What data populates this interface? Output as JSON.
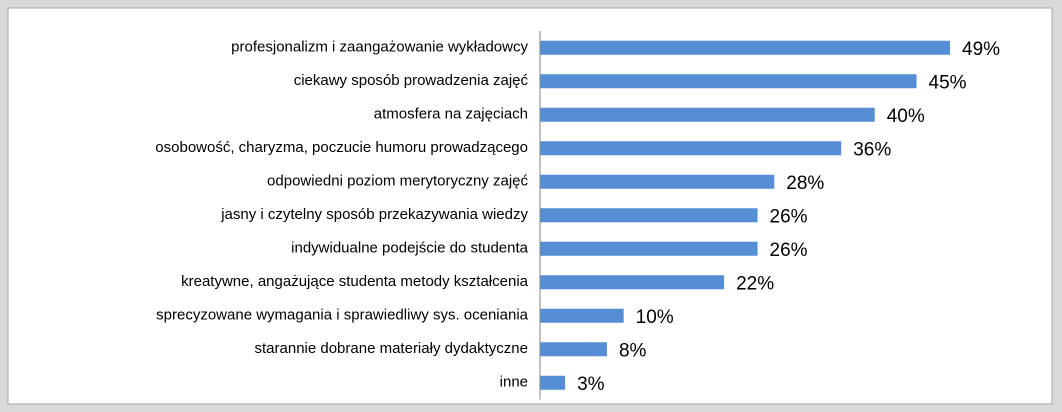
{
  "chart_data": {
    "type": "bar",
    "orientation": "horizontal",
    "categories": [
      "profesjonalizm i zaangażowanie wykładowcy",
      "ciekawy sposób prowadzenia zajęć",
      "atmosfera na zajęciach",
      "osobowość, charyzma, poczucie humoru prowadzącego",
      "odpowiedni poziom merytoryczny zajęć",
      "jasny i czytelny sposób przekazywania wiedzy",
      "indywidualne podejście do studenta",
      "kreatywne, angażujące studenta metody kształcenia",
      "sprecyzowane wymagania i sprawiedliwy sys. oceniania",
      "starannie dobrane materiały dydaktyczne",
      "inne"
    ],
    "values": [
      49,
      45,
      40,
      36,
      28,
      26,
      26,
      22,
      10,
      8,
      3
    ],
    "value_labels": [
      "49%",
      "45%",
      "40%",
      "36%",
      "28%",
      "26%",
      "26%",
      "22%",
      "10%",
      "8%",
      "3%"
    ],
    "color": "#558ed5"
  }
}
